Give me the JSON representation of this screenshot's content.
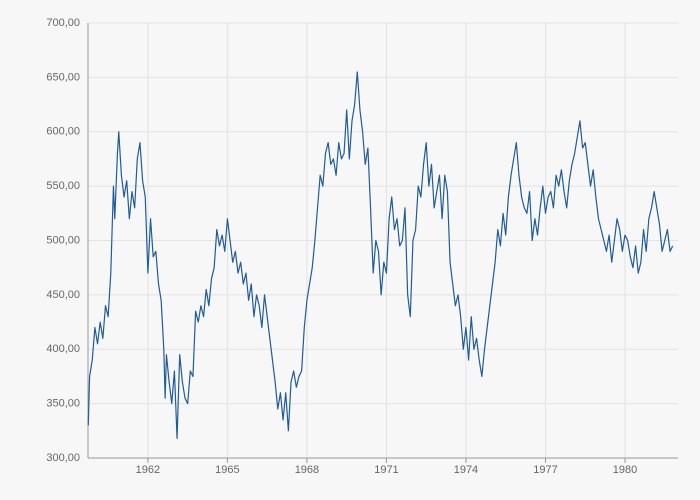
{
  "chart_data": {
    "type": "line",
    "color": "#1f5c99",
    "grid": true,
    "xlim": [
      1959.74,
      1982.0
    ],
    "xticks": [
      1962,
      1965,
      1968,
      1971,
      1974,
      1977,
      1980
    ],
    "ylim": [
      300,
      700
    ],
    "yticks": [
      {
        "value": 300,
        "label": "300,00"
      },
      {
        "value": 350,
        "label": "350,00"
      },
      {
        "value": 400,
        "label": "400,00"
      },
      {
        "value": 450,
        "label": "450,00"
      },
      {
        "value": 500,
        "label": "500,00"
      },
      {
        "value": 550,
        "label": "550,00"
      },
      {
        "value": 600,
        "label": "600,00"
      },
      {
        "value": 650,
        "label": "650,00"
      },
      {
        "value": 700,
        "label": "700,00"
      }
    ],
    "x": [
      1959.75,
      1959.8,
      1959.9,
      1960.0,
      1960.1,
      1960.2,
      1960.3,
      1960.4,
      1960.5,
      1960.6,
      1960.7,
      1960.75,
      1960.85,
      1960.9,
      1961.0,
      1961.1,
      1961.2,
      1961.3,
      1961.4,
      1961.5,
      1961.6,
      1961.7,
      1961.8,
      1961.9,
      1962.0,
      1962.1,
      1962.2,
      1962.3,
      1962.4,
      1962.5,
      1962.6,
      1962.65,
      1962.7,
      1962.8,
      1962.9,
      1963.0,
      1963.1,
      1963.2,
      1963.3,
      1963.4,
      1963.5,
      1963.6,
      1963.7,
      1963.8,
      1963.9,
      1964.0,
      1964.1,
      1964.2,
      1964.3,
      1964.4,
      1964.5,
      1964.6,
      1964.7,
      1964.8,
      1964.9,
      1965.0,
      1965.1,
      1965.2,
      1965.3,
      1965.4,
      1965.5,
      1965.6,
      1965.7,
      1965.8,
      1965.9,
      1966.0,
      1966.1,
      1966.2,
      1966.3,
      1966.4,
      1966.5,
      1966.6,
      1966.7,
      1966.8,
      1966.9,
      1967.0,
      1967.1,
      1967.2,
      1967.3,
      1967.4,
      1967.5,
      1967.6,
      1967.7,
      1967.8,
      1967.9,
      1968.0,
      1968.1,
      1968.2,
      1968.3,
      1968.4,
      1968.5,
      1968.6,
      1968.7,
      1968.8,
      1968.9,
      1969.0,
      1969.1,
      1969.2,
      1969.3,
      1969.4,
      1969.5,
      1969.6,
      1969.7,
      1969.8,
      1969.9,
      1970.0,
      1970.1,
      1970.2,
      1970.3,
      1970.4,
      1970.5,
      1970.6,
      1970.7,
      1970.8,
      1970.9,
      1971.0,
      1971.1,
      1971.2,
      1971.3,
      1971.4,
      1971.5,
      1971.6,
      1971.7,
      1971.8,
      1971.9,
      1972.0,
      1972.1,
      1972.2,
      1972.3,
      1972.4,
      1972.5,
      1972.6,
      1972.7,
      1972.8,
      1972.9,
      1973.0,
      1973.1,
      1973.2,
      1973.3,
      1973.4,
      1973.5,
      1973.6,
      1973.7,
      1973.8,
      1973.9,
      1974.0,
      1974.1,
      1974.2,
      1974.3,
      1974.4,
      1974.5,
      1974.6,
      1974.7,
      1974.8,
      1974.9,
      1975.0,
      1975.1,
      1975.2,
      1975.3,
      1975.4,
      1975.5,
      1975.6,
      1975.7,
      1975.8,
      1975.9,
      1976.0,
      1976.1,
      1976.2,
      1976.3,
      1976.4,
      1976.5,
      1976.6,
      1976.7,
      1976.8,
      1976.9,
      1977.0,
      1977.1,
      1977.2,
      1977.3,
      1977.4,
      1977.5,
      1977.6,
      1977.7,
      1977.8,
      1977.9,
      1978.0,
      1978.1,
      1978.2,
      1978.3,
      1978.4,
      1978.5,
      1978.6,
      1978.7,
      1978.8,
      1978.9,
      1979.0,
      1979.1,
      1979.2,
      1979.3,
      1979.4,
      1979.5,
      1979.6,
      1979.7,
      1979.8,
      1979.9,
      1980.0,
      1980.1,
      1980.2,
      1980.3,
      1980.4,
      1980.5,
      1980.6,
      1980.7,
      1980.8,
      1980.9,
      1981.0,
      1981.1,
      1981.2,
      1981.3,
      1981.4,
      1981.5,
      1981.6,
      1981.7,
      1981.8
    ],
    "values": [
      330,
      375,
      390,
      420,
      405,
      425,
      410,
      440,
      430,
      470,
      550,
      520,
      580,
      600,
      560,
      540,
      555,
      520,
      545,
      530,
      575,
      590,
      555,
      540,
      470,
      520,
      485,
      490,
      460,
      445,
      400,
      355,
      395,
      370,
      350,
      380,
      318,
      395,
      370,
      355,
      350,
      380,
      375,
      435,
      425,
      440,
      430,
      455,
      440,
      465,
      475,
      510,
      495,
      505,
      490,
      520,
      500,
      480,
      490,
      470,
      480,
      460,
      470,
      445,
      460,
      430,
      450,
      440,
      420,
      450,
      430,
      410,
      390,
      370,
      345,
      360,
      335,
      360,
      325,
      370,
      380,
      365,
      375,
      380,
      420,
      445,
      460,
      475,
      500,
      530,
      560,
      550,
      580,
      590,
      570,
      575,
      560,
      590,
      575,
      580,
      620,
      575,
      610,
      625,
      655,
      620,
      600,
      570,
      585,
      530,
      470,
      500,
      490,
      450,
      480,
      470,
      520,
      540,
      510,
      520,
      495,
      500,
      530,
      450,
      430,
      500,
      510,
      550,
      540,
      570,
      590,
      550,
      570,
      530,
      545,
      560,
      520,
      560,
      545,
      480,
      460,
      440,
      450,
      430,
      400,
      420,
      390,
      430,
      400,
      410,
      390,
      375,
      400,
      420,
      440,
      460,
      480,
      510,
      495,
      525,
      505,
      540,
      560,
      575,
      590,
      560,
      540,
      530,
      525,
      545,
      500,
      520,
      505,
      530,
      550,
      525,
      540,
      545,
      530,
      560,
      550,
      565,
      545,
      530,
      555,
      570,
      580,
      595,
      610,
      585,
      590,
      570,
      550,
      565,
      540,
      520,
      510,
      500,
      490,
      505,
      480,
      500,
      520,
      510,
      490,
      505,
      500,
      485,
      475,
      495,
      470,
      480,
      510,
      490,
      520,
      530,
      545,
      530,
      515,
      490,
      500,
      510,
      490,
      495
    ]
  }
}
